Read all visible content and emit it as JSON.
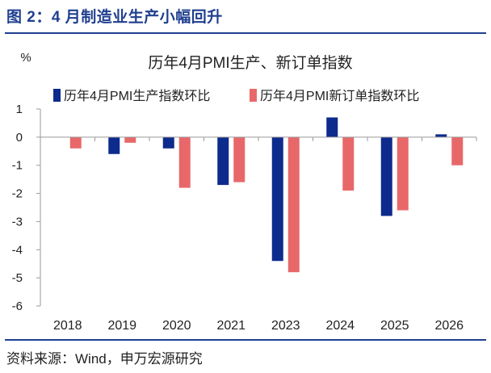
{
  "figure": {
    "title": "图 2：4 月制造业生产小幅回升",
    "source": "资料来源：Wind，申万宏源研究"
  },
  "colors": {
    "accent": "#1f3f8f",
    "series_a": "#0d2b8c",
    "series_b": "#e8686a"
  },
  "chart_data": {
    "type": "bar",
    "title": "历年4月PMI生产、新订单指数",
    "ylabel": "%",
    "xlabel": "",
    "ylim": [
      -6,
      1
    ],
    "yticks": [
      1,
      0,
      -1,
      -2,
      -3,
      -4,
      -5,
      -6
    ],
    "categories": [
      "2018",
      "2019",
      "2020",
      "2021",
      "2023",
      "2024",
      "2025",
      "2026"
    ],
    "legend_position": "top",
    "grid": false,
    "series": [
      {
        "name": "历年4月PMI生产指数环比",
        "color": "#0d2b8c",
        "values": [
          0,
          -0.6,
          -0.4,
          -1.7,
          -4.4,
          0.7,
          -2.8,
          0.1
        ]
      },
      {
        "name": "历年4月PMI新订单指数环比",
        "color": "#e8686a",
        "values": [
          -0.4,
          -0.2,
          -1.8,
          -1.6,
          -4.8,
          -1.9,
          -2.6,
          -1.0
        ]
      }
    ]
  }
}
